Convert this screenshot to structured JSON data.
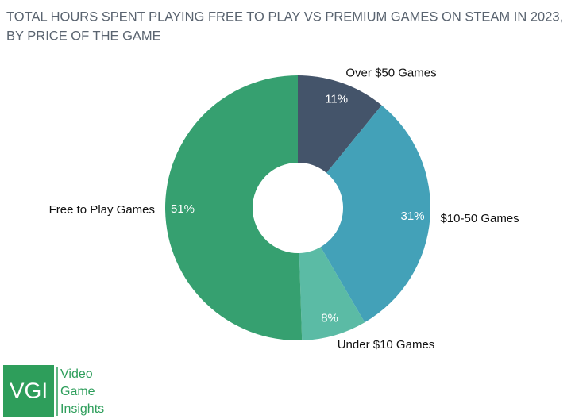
{
  "chart_data": {
    "type": "pie",
    "title": [
      "TOTAL HOURS SPENT PLAYING FREE TO PLAY VS PREMIUM GAMES ON STEAM IN 2023,",
      "BY PRICE OF THE GAME"
    ],
    "categories": [
      "Over $50 Games",
      "$10-50 Games",
      "Under $10 Games",
      "Free to Play Games"
    ],
    "values": [
      11,
      31,
      8,
      51
    ],
    "value_labels": [
      "11%",
      "31%",
      "8%",
      "51%"
    ],
    "colors": [
      "#44546a",
      "#43a1b8",
      "#5bbba5",
      "#36a070"
    ]
  },
  "logo": {
    "mark": "VGI",
    "text": [
      "Video",
      "Game",
      "Insights"
    ]
  }
}
